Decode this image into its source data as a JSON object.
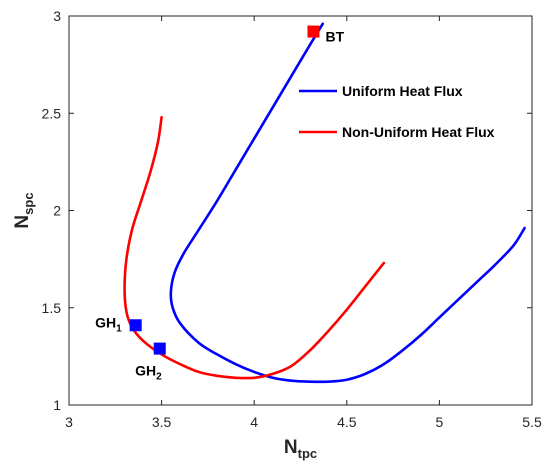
{
  "chart_data": {
    "type": "line",
    "xlabel": {
      "base": "N",
      "sub": "tpc"
    },
    "ylabel": {
      "base": "N",
      "sub": "spc"
    },
    "xlim": [
      3,
      5.5
    ],
    "ylim": [
      1,
      3
    ],
    "xticks": [
      3,
      3.5,
      4,
      4.5,
      5,
      5.5
    ],
    "yticks": [
      1,
      1.5,
      2,
      2.5,
      3
    ],
    "xtick_labels": [
      "3",
      "3.5",
      "4",
      "4.5",
      "5",
      "5.5"
    ],
    "ytick_labels": [
      "1",
      "1.5",
      "2",
      "2.5",
      "3"
    ],
    "grid": false,
    "legend_position": "top-right",
    "series": [
      {
        "name": "Uniform Heat Flux",
        "color": "#0000ff",
        "x": [
          4.37,
          4.3,
          4.2,
          4.1,
          4.0,
          3.9,
          3.8,
          3.7,
          3.62,
          3.57,
          3.55,
          3.56,
          3.6,
          3.7,
          3.8,
          3.9,
          4.0,
          4.1,
          4.2,
          4.3,
          4.4,
          4.5,
          4.6,
          4.7,
          4.8,
          4.9,
          5.0,
          5.1,
          5.2,
          5.3,
          5.4,
          5.46
        ],
        "y": [
          2.96,
          2.85,
          2.69,
          2.53,
          2.37,
          2.21,
          2.05,
          1.9,
          1.78,
          1.68,
          1.58,
          1.5,
          1.42,
          1.32,
          1.26,
          1.21,
          1.17,
          1.14,
          1.125,
          1.12,
          1.12,
          1.13,
          1.16,
          1.21,
          1.28,
          1.36,
          1.45,
          1.54,
          1.63,
          1.72,
          1.82,
          1.91
        ]
      },
      {
        "name": "Non-Uniform Heat Flux",
        "color": "#ff0000",
        "x": [
          3.5,
          3.48,
          3.44,
          3.39,
          3.34,
          3.31,
          3.3,
          3.31,
          3.34,
          3.4,
          3.5,
          3.6,
          3.7,
          3.8,
          3.9,
          4.0,
          4.1,
          4.2,
          4.3,
          4.4,
          4.5,
          4.6,
          4.7
        ],
        "y": [
          2.48,
          2.35,
          2.2,
          2.05,
          1.9,
          1.75,
          1.6,
          1.48,
          1.4,
          1.33,
          1.26,
          1.21,
          1.17,
          1.15,
          1.14,
          1.14,
          1.16,
          1.2,
          1.28,
          1.38,
          1.49,
          1.61,
          1.73
        ]
      }
    ],
    "markers": [
      {
        "label": "BT",
        "x": 4.32,
        "y": 2.92,
        "color": "#ff0000"
      },
      {
        "label": "GH",
        "sub": "1",
        "x": 3.36,
        "y": 1.41,
        "color": "#0000ff"
      },
      {
        "label": "GH",
        "sub": "2",
        "x": 3.49,
        "y": 1.29,
        "color": "#0000ff"
      }
    ]
  }
}
